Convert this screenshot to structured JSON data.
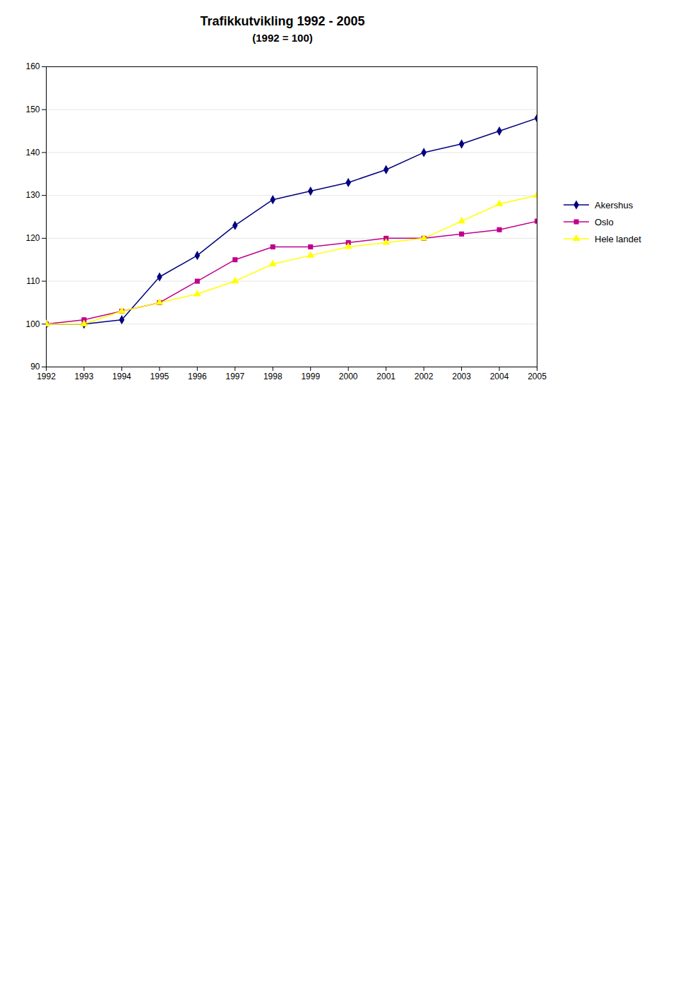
{
  "chart_data": {
    "type": "line",
    "title": "Trafikkutvikling 1992 - 2005",
    "subtitle": "(1992 = 100)",
    "x": [
      1992,
      1993,
      1994,
      1995,
      1996,
      1997,
      1998,
      1999,
      2000,
      2001,
      2002,
      2003,
      2004,
      2005
    ],
    "series": [
      {
        "name": "Akershus",
        "color": "#000080",
        "marker": "diamond",
        "values": [
          100,
          100,
          101,
          111,
          116,
          123,
          129,
          131,
          133,
          136,
          140,
          142,
          145,
          148
        ]
      },
      {
        "name": "Oslo",
        "color": "#C0008C",
        "marker": "square",
        "values": [
          100,
          101,
          103,
          105,
          110,
          115,
          118,
          118,
          119,
          120,
          120,
          121,
          122,
          124
        ]
      },
      {
        "name": "Hele landet",
        "color": "#FFFF00",
        "marker": "triangle",
        "values": [
          100,
          100,
          103,
          105,
          107,
          110,
          114,
          116,
          118,
          119,
          120,
          124,
          128,
          130
        ]
      }
    ],
    "xlim": [
      1992,
      2005
    ],
    "xticks": [
      1992,
      1993,
      1994,
      1995,
      1996,
      1997,
      1998,
      1999,
      2000,
      2001,
      2002,
      2003,
      2004,
      2005
    ],
    "ylim": [
      90,
      160
    ],
    "yticks": [
      90,
      100,
      110,
      120,
      130,
      140,
      150,
      160
    ],
    "grid": true,
    "legend": "right"
  }
}
